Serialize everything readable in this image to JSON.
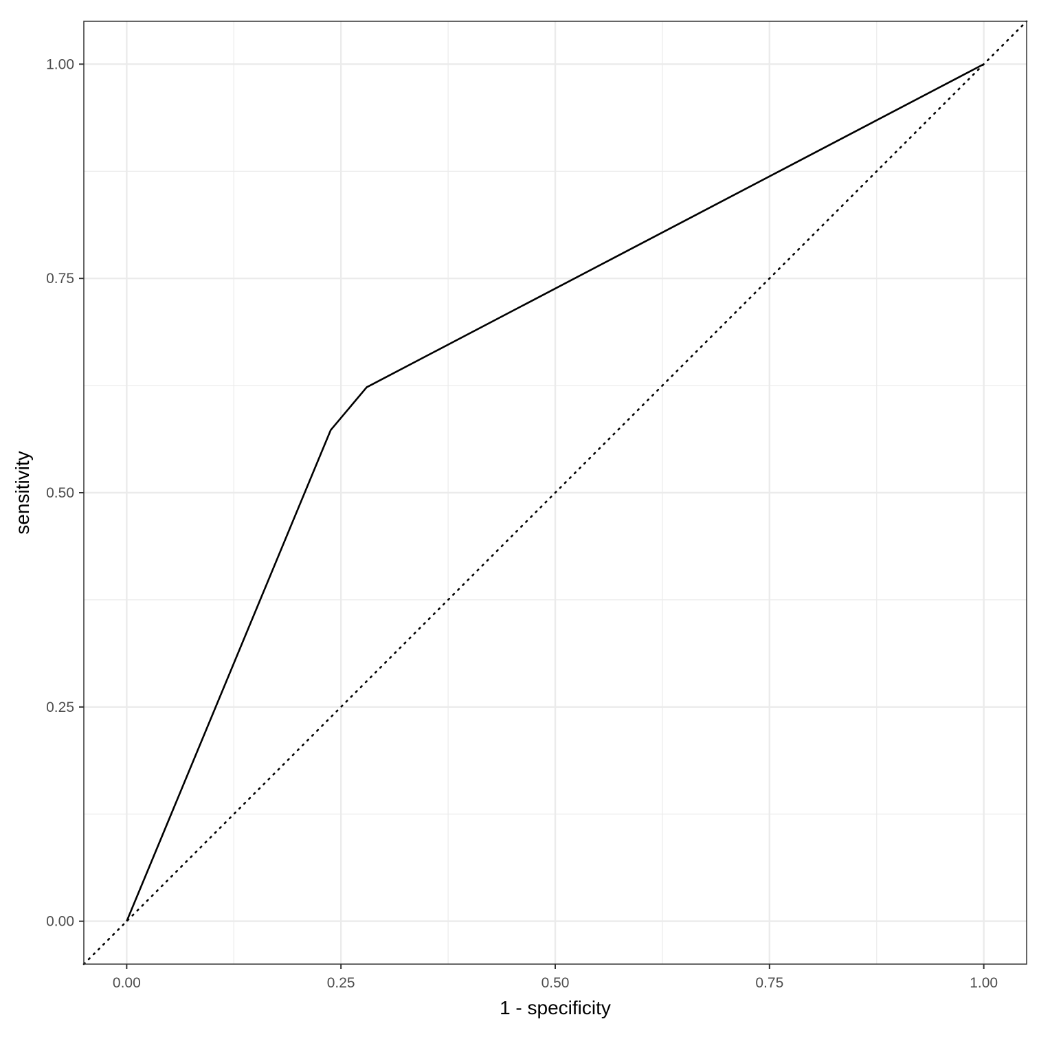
{
  "chart_data": {
    "type": "line",
    "xlabel": "1 - specificity",
    "ylabel": "sensitivity",
    "xlim": [
      -0.05,
      1.05
    ],
    "ylim": [
      -0.05,
      1.05
    ],
    "x_ticks": [
      0,
      0.25,
      0.5,
      0.75,
      1
    ],
    "y_ticks": [
      0,
      0.25,
      0.5,
      0.75,
      1
    ],
    "x_tick_labels": [
      "0.00",
      "0.25",
      "0.50",
      "0.75",
      "1.00"
    ],
    "y_tick_labels": [
      "0.00",
      "0.25",
      "0.50",
      "0.75",
      "1.00"
    ],
    "minor_ticks": [
      0.125,
      0.375,
      0.625,
      0.875
    ],
    "grid": true,
    "series": [
      {
        "style": "solid",
        "points": [
          {
            "x": 0.0,
            "y": 0.0
          },
          {
            "x": 0.238,
            "y": 0.573
          },
          {
            "x": 0.28,
            "y": 0.623
          },
          {
            "x": 1.0,
            "y": 1.0
          }
        ]
      }
    ],
    "reference_line": {
      "style": "dotted",
      "slope": 1,
      "intercept": 0
    }
  },
  "colors": {
    "line": "#000000",
    "grid": "#ebebeb",
    "border": "#333333",
    "tick_text": "#4d4d4d"
  }
}
